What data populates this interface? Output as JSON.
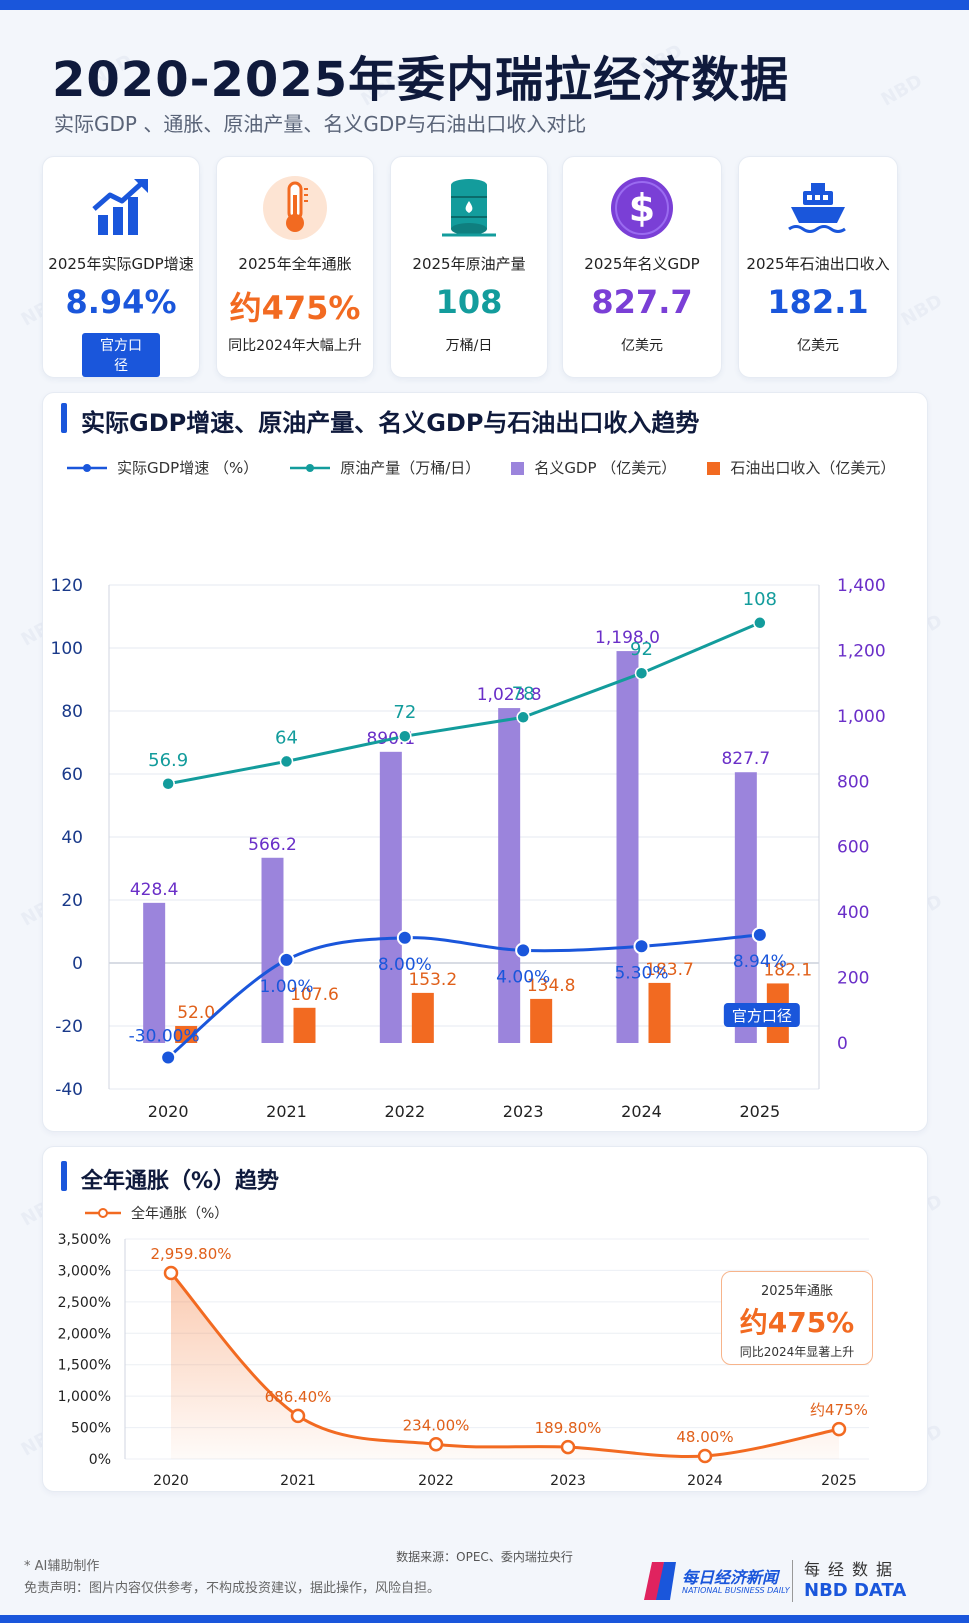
{
  "header": {
    "title": "2020-2025年委内瑞拉经济数据",
    "subtitle": "实际GDP 、通胀、原油产量、名义GDP与石油出口收入对比"
  },
  "watermark_text": "NBD",
  "cards": [
    {
      "icon": "bar-growth-icon",
      "label": "2025年实际GDP增速",
      "value": "8.94%",
      "badge": "官方口径",
      "color": "#1a56db"
    },
    {
      "icon": "thermometer-icon",
      "label": "2025年全年通胀",
      "value": "约475%",
      "sub": "同比2024年大幅上升",
      "color": "#f26a21"
    },
    {
      "icon": "oil-barrel-icon",
      "label": "2025年原油产量",
      "value": "108",
      "sub": "万桶/日",
      "color": "#139c9c"
    },
    {
      "icon": "dollar-coin-icon",
      "label": "2025年名义GDP",
      "value": "827.7",
      "sub": "亿美元",
      "color": "#7a3fd6"
    },
    {
      "icon": "oil-tanker-icon",
      "label": "2025年石油出口收入",
      "value": "182.1",
      "sub": "亿美元",
      "color": "#1a56db"
    }
  ],
  "panel1": {
    "title": "实际GDP增速、原油产量、名义GDP与石油出口收入趋势",
    "badge": "官方口径"
  },
  "panel2": {
    "title": "全年通胀（%）趋势",
    "callout_title": "2025年通胀",
    "callout_value": "约475%",
    "callout_sub": "同比2024年显著上升"
  },
  "footer": {
    "source": "数据来源：OPEC、委内瑞拉央行",
    "ai_note": "* AI辅助制作",
    "disclaimer": "免责声明：图片内容仅供参考，不构成投资建议，据此操作，风险自担。",
    "brand_cn": "每日经济新闻",
    "brand_en": "NATIONAL BUSINESS DAILY",
    "brand_right_1": "每经数据",
    "brand_right_2": "NBD DATA"
  },
  "chart_data": [
    {
      "type": "bar",
      "categories": [
        "2020",
        "2021",
        "2022",
        "2023",
        "2024",
        "2025"
      ],
      "series": [
        {
          "name": "实际GDP增速 （%）",
          "type": "line",
          "axis": "left",
          "color": "#1a56db",
          "values": [
            -30.0,
            1.0,
            8.0,
            4.0,
            5.3,
            8.94
          ],
          "labels": [
            "-30.00%",
            "1.00%",
            "8.00%",
            "4.00%",
            "5.30%",
            "8.94%"
          ]
        },
        {
          "name": "原油产量（万桶/日）",
          "type": "line",
          "axis": "left",
          "color": "#139c9c",
          "values": [
            56.9,
            64,
            72,
            78,
            92,
            108
          ],
          "labels": [
            "56.9",
            "64",
            "72",
            "78",
            "92",
            "108"
          ]
        },
        {
          "name": "名义GDP （亿美元）",
          "type": "bar",
          "axis": "right",
          "color": "#9b84dc",
          "values": [
            428.4,
            566.2,
            890.1,
            1023.8,
            1198.0,
            827.7
          ],
          "labels": [
            "428.4",
            "566.2",
            "890.1",
            "1,023.8",
            "1,198.0",
            "827.7"
          ]
        },
        {
          "name": "石油出口收入（亿美元）",
          "type": "bar",
          "axis": "right",
          "color": "#f26a21",
          "values": [
            52.0,
            107.6,
            153.2,
            134.8,
            183.7,
            182.1
          ],
          "labels": [
            "52.0",
            "107.6",
            "153.2",
            "134.8",
            "183.7",
            "182.1"
          ]
        }
      ],
      "y_left": {
        "ylim": [
          -40,
          120
        ],
        "ticks": [
          "-40",
          "-20",
          "0",
          "20",
          "40",
          "60",
          "80",
          "100",
          "120"
        ]
      },
      "y_right": {
        "ylim": [
          0,
          1400
        ],
        "ticks": [
          "0",
          "200",
          "400",
          "600",
          "800",
          "1,000",
          "1,200",
          "1,400"
        ]
      },
      "grid": true,
      "legend": "top-left"
    },
    {
      "type": "area",
      "categories": [
        "2020",
        "2021",
        "2022",
        "2023",
        "2024",
        "2025"
      ],
      "series": [
        {
          "name": "全年通胀（%）",
          "color": "#f26a21",
          "values": [
            2959.8,
            686.4,
            234.0,
            189.8,
            48.0,
            475
          ],
          "labels": [
            "2,959.80%",
            "686.40%",
            "234.00%",
            "189.80%",
            "48.00%",
            "约475%"
          ]
        }
      ],
      "ylim": [
        0,
        3500
      ],
      "ticks": [
        "0%",
        "500%",
        "1,000%",
        "1,500%",
        "2,000%",
        "2,500%",
        "3,000%",
        "3,500%"
      ],
      "grid": true,
      "legend": "top-left"
    }
  ]
}
